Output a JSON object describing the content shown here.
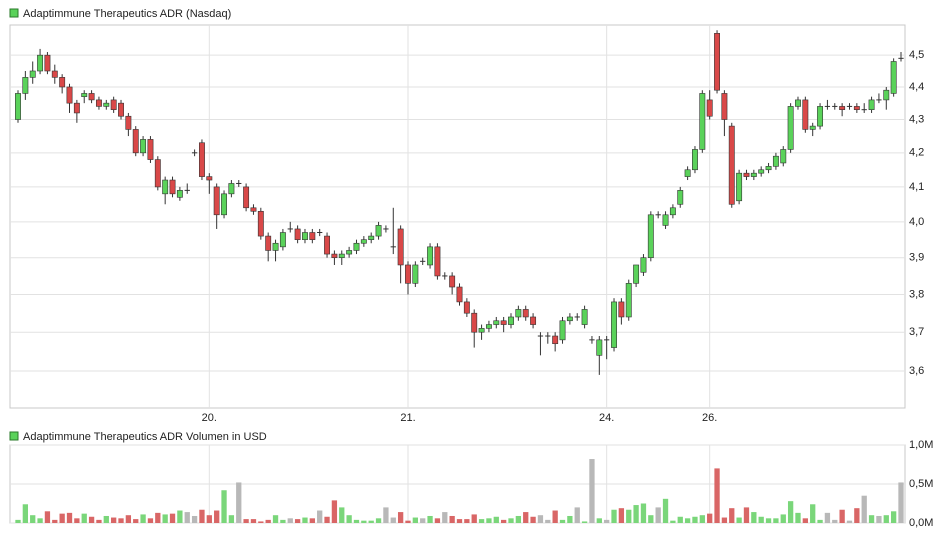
{
  "chart_data": [
    {
      "type": "candlestick",
      "title": "Adaptimmune Therapeutics ADR (Nasdaq)",
      "log_scale": true,
      "grid": true,
      "up_color": "#5ad25a",
      "down_color": "#d94848",
      "flat_color": "#333333",
      "ylim": [
        3.507,
        4.597
      ],
      "yticks": [
        {
          "value": 4.5,
          "label": "4,5"
        },
        {
          "value": 4.4,
          "label": "4,4"
        },
        {
          "value": 4.3,
          "label": "4,3"
        },
        {
          "value": 4.2,
          "label": "4,2"
        },
        {
          "value": 4.1,
          "label": "4,1"
        },
        {
          "value": 4.0,
          "label": "4,0"
        },
        {
          "value": 3.9,
          "label": "3,9"
        },
        {
          "value": 3.8,
          "label": "3,8"
        },
        {
          "value": 3.7,
          "label": "3,7"
        },
        {
          "value": 3.6,
          "label": "3,6"
        }
      ],
      "categories": [
        null,
        null,
        null,
        null,
        null,
        null,
        null,
        null,
        null,
        null,
        null,
        null,
        null,
        null,
        null,
        null,
        null,
        null,
        null,
        null,
        null,
        null,
        null,
        null,
        null,
        null,
        "20.",
        null,
        null,
        null,
        null,
        null,
        null,
        null,
        null,
        null,
        null,
        null,
        null,
        null,
        null,
        null,
        null,
        null,
        null,
        null,
        null,
        null,
        null,
        null,
        null,
        null,
        null,
        "21.",
        null,
        null,
        null,
        null,
        null,
        null,
        null,
        null,
        null,
        null,
        null,
        null,
        null,
        null,
        null,
        null,
        null,
        null,
        null,
        null,
        null,
        null,
        null,
        null,
        null,
        null,
        "24.",
        null,
        null,
        null,
        null,
        null,
        null,
        null,
        null,
        null,
        null,
        null,
        null,
        null,
        "26.",
        null,
        null,
        null,
        null,
        null,
        null,
        null,
        null,
        null,
        null,
        null,
        null,
        null,
        null,
        null,
        null,
        null,
        null,
        null,
        null,
        null,
        null,
        null,
        null,
        null,
        null
      ],
      "ohlc": [
        [
          4.3,
          4.39,
          4.29,
          4.38
        ],
        [
          4.38,
          4.45,
          4.36,
          4.43
        ],
        [
          4.43,
          4.48,
          4.41,
          4.45
        ],
        [
          4.45,
          4.52,
          4.44,
          4.5
        ],
        [
          4.5,
          4.51,
          4.44,
          4.45
        ],
        [
          4.45,
          4.47,
          4.41,
          4.43
        ],
        [
          4.43,
          4.44,
          4.38,
          4.4
        ],
        [
          4.4,
          4.41,
          4.32,
          4.35
        ],
        [
          4.35,
          4.36,
          4.29,
          4.32
        ],
        [
          4.37,
          4.39,
          4.35,
          4.38
        ],
        [
          4.38,
          4.39,
          4.35,
          4.36
        ],
        [
          4.36,
          4.37,
          4.33,
          4.34
        ],
        [
          4.34,
          4.36,
          4.33,
          4.35
        ],
        [
          4.36,
          4.37,
          4.32,
          4.33
        ],
        [
          4.35,
          4.36,
          4.3,
          4.31
        ],
        [
          4.31,
          4.32,
          4.25,
          4.27
        ],
        [
          4.27,
          4.28,
          4.19,
          4.2
        ],
        [
          4.2,
          4.25,
          4.19,
          4.24
        ],
        [
          4.24,
          4.25,
          4.17,
          4.18
        ],
        [
          4.18,
          4.19,
          4.09,
          4.1
        ],
        [
          4.08,
          4.13,
          4.05,
          4.12
        ],
        [
          4.12,
          4.13,
          4.07,
          4.08
        ],
        [
          4.07,
          4.1,
          4.06,
          4.09
        ],
        [
          4.09,
          4.11,
          4.08,
          4.09
        ],
        [
          4.2,
          4.21,
          4.19,
          4.2
        ],
        [
          4.23,
          4.24,
          4.12,
          4.13
        ],
        [
          4.13,
          4.14,
          4.08,
          4.12
        ],
        [
          4.1,
          4.11,
          3.98,
          4.02
        ],
        [
          4.02,
          4.09,
          4.01,
          4.08
        ],
        [
          4.08,
          4.12,
          4.07,
          4.11
        ],
        [
          4.11,
          4.12,
          4.1,
          4.11
        ],
        [
          4.1,
          4.11,
          4.03,
          4.04
        ],
        [
          4.04,
          4.05,
          4.02,
          4.03
        ],
        [
          4.03,
          4.04,
          3.95,
          3.96
        ],
        [
          3.96,
          3.97,
          3.89,
          3.92
        ],
        [
          3.92,
          3.95,
          3.89,
          3.94
        ],
        [
          3.93,
          3.98,
          3.92,
          3.97
        ],
        [
          3.98,
          4.0,
          3.97,
          3.98
        ],
        [
          3.98,
          3.99,
          3.94,
          3.95
        ],
        [
          3.95,
          3.98,
          3.94,
          3.97
        ],
        [
          3.97,
          3.98,
          3.94,
          3.95
        ],
        [
          3.97,
          3.98,
          3.96,
          3.97
        ],
        [
          3.96,
          3.97,
          3.9,
          3.91
        ],
        [
          3.91,
          3.92,
          3.88,
          3.9
        ],
        [
          3.9,
          3.92,
          3.88,
          3.91
        ],
        [
          3.91,
          3.93,
          3.9,
          3.92
        ],
        [
          3.92,
          3.95,
          3.91,
          3.94
        ],
        [
          3.94,
          3.96,
          3.93,
          3.95
        ],
        [
          3.95,
          3.97,
          3.94,
          3.96
        ],
        [
          3.96,
          4.0,
          3.95,
          3.99
        ],
        [
          3.98,
          3.99,
          3.97,
          3.98
        ],
        [
          3.93,
          4.04,
          3.91,
          3.93
        ],
        [
          3.98,
          3.99,
          3.83,
          3.88
        ],
        [
          3.88,
          3.89,
          3.8,
          3.83
        ],
        [
          3.83,
          3.89,
          3.82,
          3.88
        ],
        [
          3.89,
          3.9,
          3.88,
          3.89
        ],
        [
          3.88,
          3.94,
          3.87,
          3.93
        ],
        [
          3.93,
          3.94,
          3.84,
          3.85
        ],
        [
          3.85,
          3.86,
          3.84,
          3.85
        ],
        [
          3.85,
          3.86,
          3.8,
          3.82
        ],
        [
          3.82,
          3.83,
          3.77,
          3.78
        ],
        [
          3.78,
          3.79,
          3.74,
          3.75
        ],
        [
          3.75,
          3.76,
          3.66,
          3.7
        ],
        [
          3.7,
          3.72,
          3.68,
          3.71
        ],
        [
          3.71,
          3.73,
          3.7,
          3.72
        ],
        [
          3.72,
          3.74,
          3.71,
          3.73
        ],
        [
          3.73,
          3.74,
          3.7,
          3.72
        ],
        [
          3.72,
          3.75,
          3.71,
          3.74
        ],
        [
          3.74,
          3.77,
          3.73,
          3.76
        ],
        [
          3.76,
          3.77,
          3.73,
          3.74
        ],
        [
          3.74,
          3.75,
          3.71,
          3.72
        ],
        [
          3.69,
          3.7,
          3.64,
          3.69
        ],
        [
          3.69,
          3.7,
          3.67,
          3.69
        ],
        [
          3.69,
          3.7,
          3.65,
          3.67
        ],
        [
          3.68,
          3.74,
          3.67,
          3.73
        ],
        [
          3.73,
          3.75,
          3.72,
          3.74
        ],
        [
          3.74,
          3.75,
          3.73,
          3.74
        ],
        [
          3.72,
          3.77,
          3.71,
          3.76
        ],
        [
          3.68,
          3.69,
          3.67,
          3.68
        ],
        [
          3.64,
          3.69,
          3.59,
          3.68
        ],
        [
          3.68,
          3.69,
          3.63,
          3.68
        ],
        [
          3.66,
          3.79,
          3.65,
          3.78
        ],
        [
          3.78,
          3.79,
          3.72,
          3.74
        ],
        [
          3.74,
          3.84,
          3.73,
          3.83
        ],
        [
          3.83,
          3.88,
          3.82,
          3.88
        ],
        [
          3.86,
          3.91,
          3.85,
          3.9
        ],
        [
          3.9,
          4.03,
          3.89,
          4.02
        ],
        [
          4.02,
          4.03,
          4.01,
          4.02
        ],
        [
          3.99,
          4.03,
          3.98,
          4.02
        ],
        [
          4.02,
          4.05,
          4.01,
          4.04
        ],
        [
          4.05,
          4.1,
          4.04,
          4.09
        ],
        [
          4.13,
          4.16,
          4.12,
          4.15
        ],
        [
          4.15,
          4.22,
          4.14,
          4.21
        ],
        [
          4.21,
          4.39,
          4.2,
          4.38
        ],
        [
          4.36,
          4.39,
          4.3,
          4.31
        ],
        [
          4.57,
          4.58,
          4.38,
          4.39
        ],
        [
          4.38,
          4.39,
          4.25,
          4.3
        ],
        [
          4.28,
          4.29,
          4.04,
          4.05
        ],
        [
          4.06,
          4.15,
          4.05,
          4.14
        ],
        [
          4.14,
          4.15,
          4.12,
          4.13
        ],
        [
          4.13,
          4.15,
          4.12,
          4.14
        ],
        [
          4.14,
          4.16,
          4.13,
          4.15
        ],
        [
          4.15,
          4.17,
          4.14,
          4.16
        ],
        [
          4.16,
          4.2,
          4.15,
          4.19
        ],
        [
          4.17,
          4.22,
          4.16,
          4.21
        ],
        [
          4.21,
          4.35,
          4.2,
          4.34
        ],
        [
          4.34,
          4.37,
          4.33,
          4.36
        ],
        [
          4.36,
          4.37,
          4.26,
          4.27
        ],
        [
          4.27,
          4.29,
          4.25,
          4.28
        ],
        [
          4.28,
          4.35,
          4.27,
          4.34
        ],
        [
          4.34,
          4.36,
          4.33,
          4.34
        ],
        [
          4.34,
          4.35,
          4.33,
          4.34
        ],
        [
          4.34,
          4.35,
          4.31,
          4.33
        ],
        [
          4.34,
          4.35,
          4.33,
          4.34
        ],
        [
          4.34,
          4.35,
          4.32,
          4.33
        ],
        [
          4.33,
          4.35,
          4.32,
          4.33
        ],
        [
          4.33,
          4.37,
          4.32,
          4.36
        ],
        [
          4.36,
          4.38,
          4.35,
          4.36
        ],
        [
          4.36,
          4.4,
          4.33,
          4.39
        ],
        [
          4.38,
          4.49,
          4.37,
          4.48
        ],
        [
          4.49,
          4.51,
          4.48,
          4.49
        ]
      ]
    },
    {
      "type": "volume",
      "title": "Adaptimmune Therapeutics ADR Volumen in USD",
      "up_color": "#7ad67a",
      "down_color": "#d96666",
      "flat_color": "#b8b8b8",
      "ylim": [
        0,
        1000000
      ],
      "yticks": [
        {
          "value": 1000000,
          "label": "1,0M"
        },
        {
          "value": 500000,
          "label": "0,5M"
        },
        {
          "value": 0,
          "label": "0,0M"
        }
      ],
      "values": [
        40000,
        240000,
        100000,
        60000,
        150000,
        40000,
        120000,
        130000,
        60000,
        120000,
        80000,
        40000,
        90000,
        70000,
        60000,
        100000,
        50000,
        110000,
        60000,
        130000,
        110000,
        120000,
        160000,
        140000,
        90000,
        170000,
        100000,
        160000,
        420000,
        100000,
        520000,
        50000,
        50000,
        20000,
        40000,
        100000,
        40000,
        60000,
        50000,
        70000,
        60000,
        160000,
        80000,
        290000,
        200000,
        100000,
        40000,
        30000,
        30000,
        60000,
        200000,
        70000,
        140000,
        30000,
        70000,
        60000,
        90000,
        60000,
        140000,
        90000,
        50000,
        50000,
        110000,
        50000,
        60000,
        80000,
        40000,
        60000,
        90000,
        140000,
        80000,
        100000,
        40000,
        160000,
        40000,
        90000,
        200000,
        20000,
        820000,
        60000,
        40000,
        170000,
        190000,
        170000,
        230000,
        250000,
        100000,
        200000,
        310000,
        30000,
        80000,
        60000,
        80000,
        100000,
        120000,
        700000,
        70000,
        190000,
        70000,
        200000,
        140000,
        80000,
        60000,
        60000,
        110000,
        280000,
        130000,
        60000,
        240000,
        40000,
        130000,
        40000,
        170000,
        30000,
        190000,
        350000,
        100000,
        90000,
        100000,
        150000,
        520000
      ]
    }
  ]
}
